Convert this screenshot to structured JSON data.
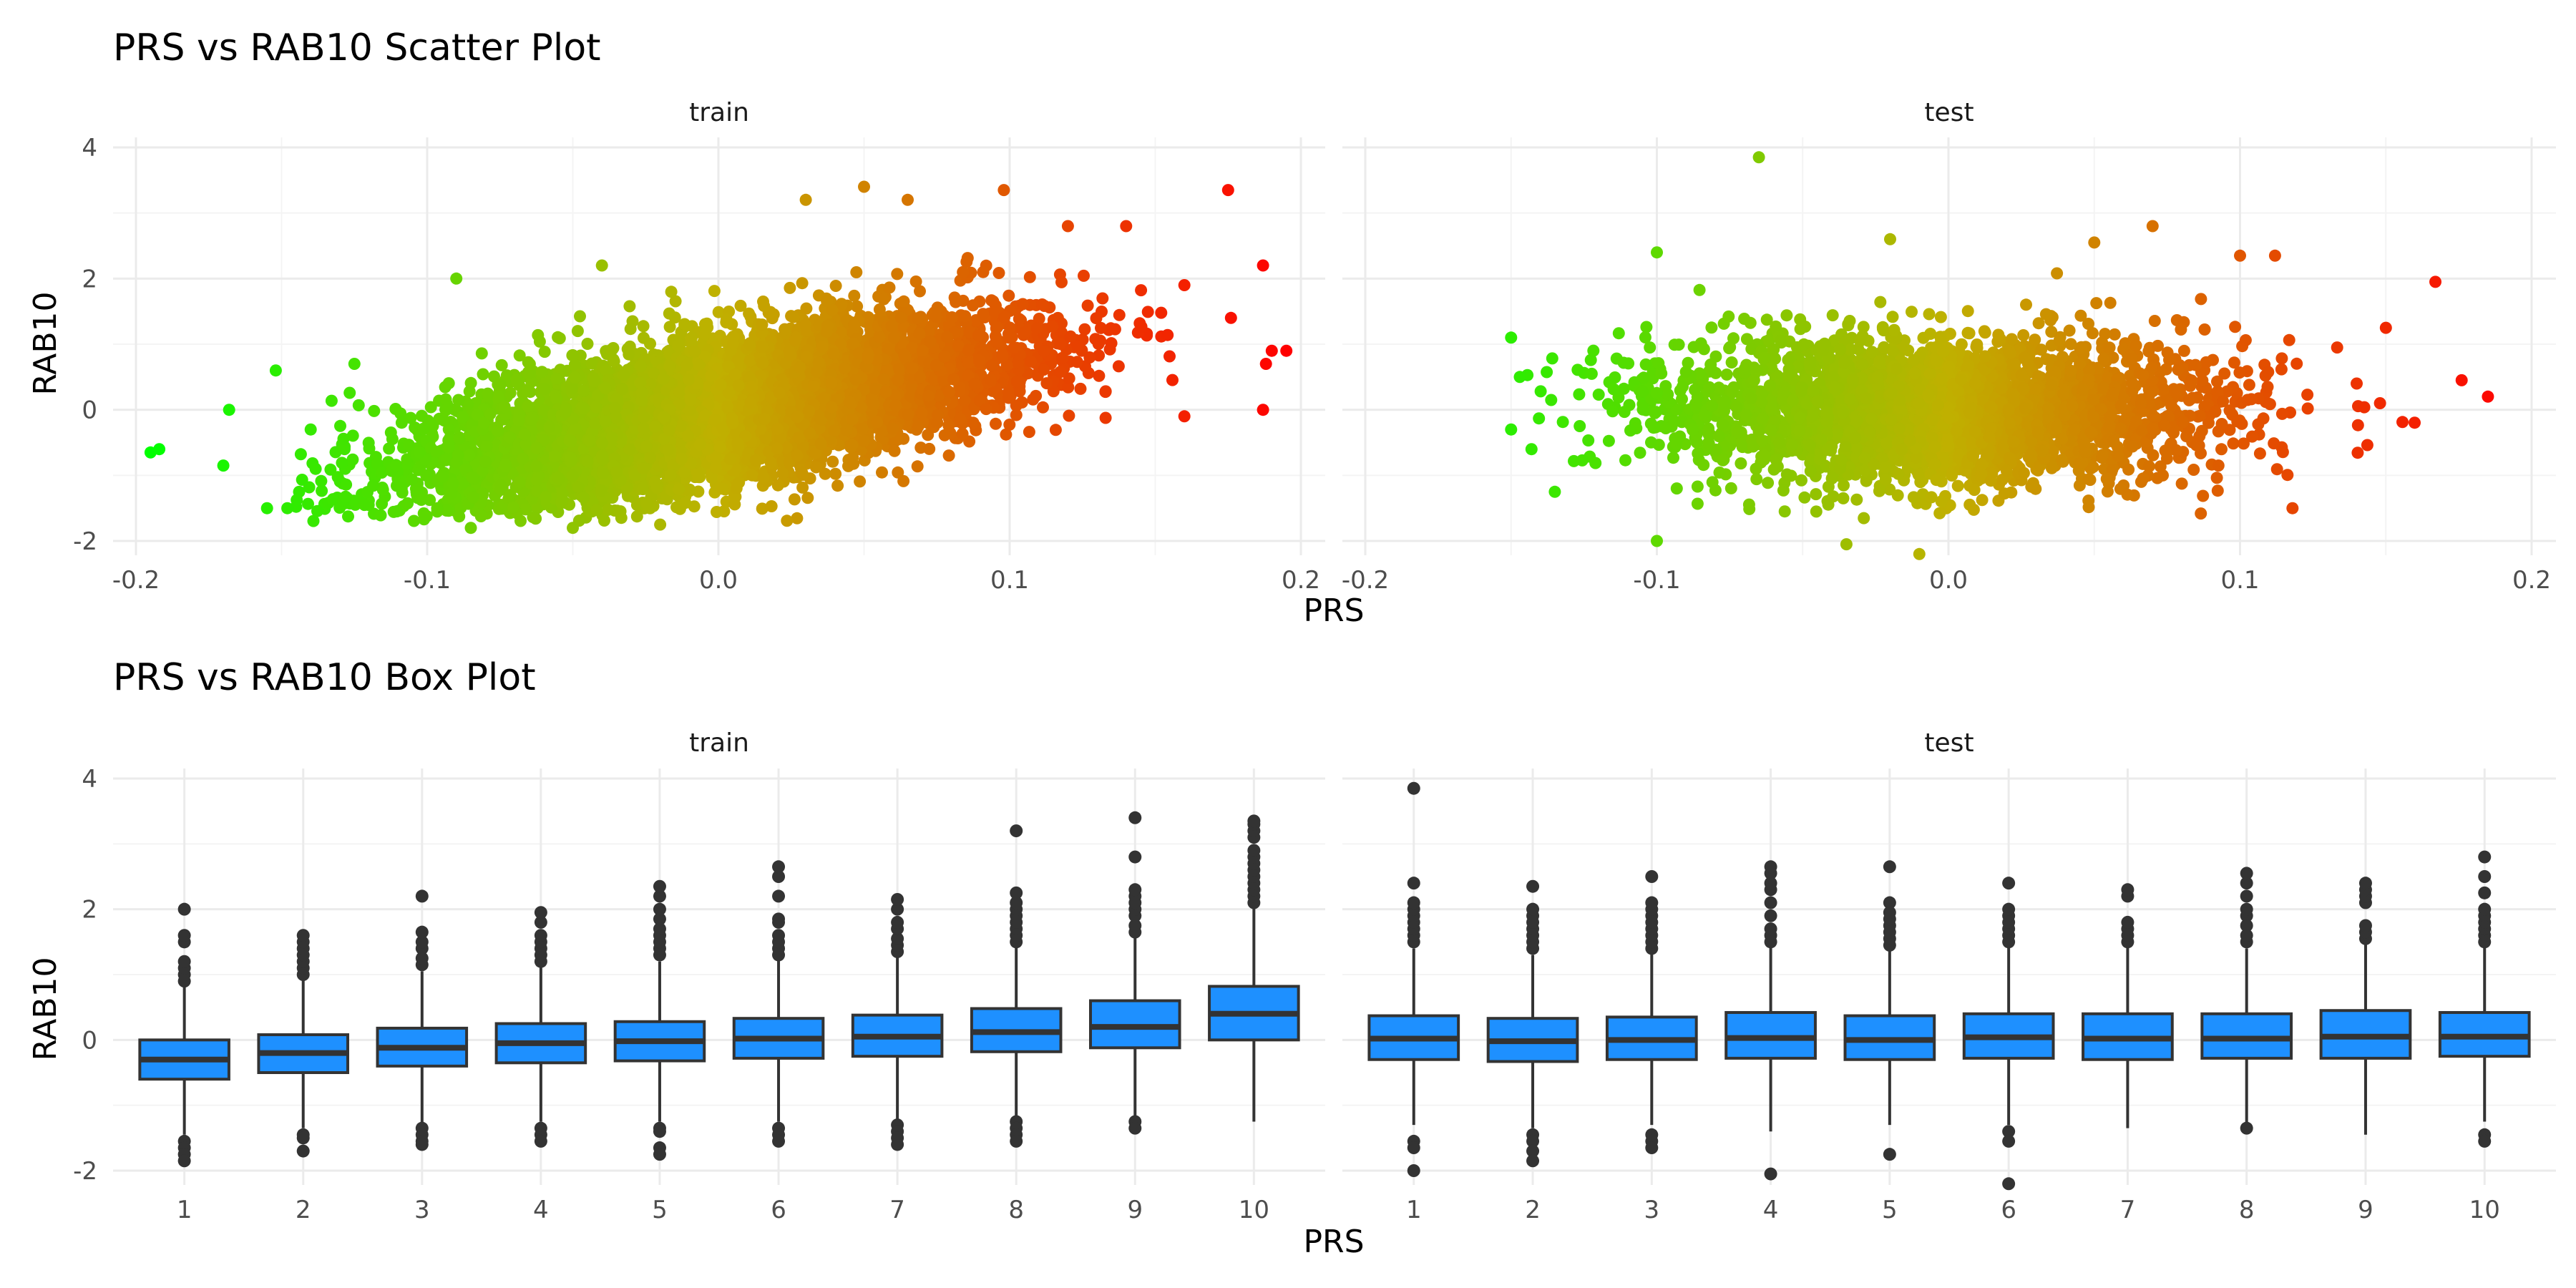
{
  "chart_data": [
    {
      "type": "scatter",
      "title": "PRS vs RAB10 Scatter Plot",
      "xlabel": "PRS",
      "ylabel": "RAB10",
      "xlim": [
        -0.2,
        0.2
      ],
      "ylim": [
        -2,
        4
      ],
      "x_ticks": [
        -0.2,
        -0.1,
        0.0,
        0.1,
        0.2
      ],
      "x_tick_labels": [
        "-0.2",
        "-0.1",
        "0.0",
        "0.1",
        "0.2"
      ],
      "y_ticks": [
        -2,
        0,
        2,
        4
      ],
      "y_tick_labels": [
        "-2",
        "0",
        "2",
        "4"
      ],
      "grid": true,
      "color_scale": {
        "low": "#00ff00",
        "mid": "#c0b000",
        "high": "#ff0000",
        "maps": "PRS"
      },
      "panels": [
        {
          "name": "train",
          "cloud": {
            "n": 7000,
            "x_mean": 0.0,
            "x_sd": 0.05,
            "slope": 8.5,
            "resid_sd": 0.52
          },
          "points": [
            {
              "x": -0.195,
              "y": -0.65
            },
            {
              "x": -0.192,
              "y": -0.6
            },
            {
              "x": -0.17,
              "y": -0.85
            },
            {
              "x": -0.168,
              "y": 0.0
            },
            {
              "x": -0.155,
              "y": -1.5
            },
            {
              "x": -0.152,
              "y": 0.6
            },
            {
              "x": -0.148,
              "y": -1.5
            },
            {
              "x": -0.14,
              "y": -0.3
            },
            {
              "x": -0.125,
              "y": 0.7
            },
            {
              "x": -0.09,
              "y": 2.0
            },
            {
              "x": -0.04,
              "y": 2.2
            },
            {
              "x": 0.03,
              "y": 3.2
            },
            {
              "x": 0.05,
              "y": 3.4
            },
            {
              "x": 0.065,
              "y": 3.2
            },
            {
              "x": 0.098,
              "y": 3.35
            },
            {
              "x": 0.12,
              "y": 2.8
            },
            {
              "x": 0.14,
              "y": 2.8
            },
            {
              "x": 0.175,
              "y": 3.35
            },
            {
              "x": 0.187,
              "y": 2.2
            },
            {
              "x": 0.19,
              "y": 0.9
            },
            {
              "x": 0.195,
              "y": 0.9
            },
            {
              "x": 0.188,
              "y": 0.7
            },
            {
              "x": 0.187,
              "y": 0.0
            },
            {
              "x": 0.176,
              "y": 1.4
            },
            {
              "x": 0.16,
              "y": -0.1
            },
            {
              "x": 0.16,
              "y": 1.9
            },
            {
              "x": -0.085,
              "y": -1.8
            },
            {
              "x": -0.05,
              "y": -1.8
            },
            {
              "x": -0.02,
              "y": -1.75
            }
          ]
        },
        {
          "name": "test",
          "cloud": {
            "n": 3000,
            "x_mean": -0.005,
            "x_sd": 0.048,
            "slope": 0.0,
            "resid_sd": 0.55
          },
          "points": [
            {
              "x": -0.065,
              "y": 3.85
            },
            {
              "x": -0.15,
              "y": 1.1
            },
            {
              "x": -0.147,
              "y": 0.5
            },
            {
              "x": -0.15,
              "y": -0.3
            },
            {
              "x": -0.143,
              "y": -0.6
            },
            {
              "x": -0.135,
              "y": -1.25
            },
            {
              "x": -0.1,
              "y": -2.0
            },
            {
              "x": -0.035,
              "y": -2.05
            },
            {
              "x": -0.01,
              "y": -2.2
            },
            {
              "x": -0.1,
              "y": 2.4
            },
            {
              "x": -0.02,
              "y": 2.6
            },
            {
              "x": 0.05,
              "y": 2.55
            },
            {
              "x": 0.07,
              "y": 2.8
            },
            {
              "x": 0.1,
              "y": 2.35
            },
            {
              "x": 0.112,
              "y": 2.35
            },
            {
              "x": 0.118,
              "y": -1.5
            },
            {
              "x": 0.14,
              "y": 0.4
            },
            {
              "x": 0.148,
              "y": 0.1
            },
            {
              "x": 0.15,
              "y": 1.25
            },
            {
              "x": 0.167,
              "y": 1.95
            },
            {
              "x": 0.176,
              "y": 0.45
            },
            {
              "x": 0.185,
              "y": 0.2
            }
          ]
        }
      ]
    },
    {
      "type": "box",
      "title": "PRS vs RAB10 Box Plot",
      "xlabel": "PRS",
      "ylabel": "RAB10",
      "categories": [
        "1",
        "2",
        "3",
        "4",
        "5",
        "6",
        "7",
        "8",
        "9",
        "10"
      ],
      "ylim": [
        -2,
        4
      ],
      "y_ticks": [
        -2,
        0,
        2,
        4
      ],
      "y_tick_labels": [
        "-2",
        "0",
        "2",
        "4"
      ],
      "grid": true,
      "box_fill": "#1e90ff",
      "box_stroke": "#333333",
      "panels": [
        {
          "name": "train",
          "boxes": [
            {
              "q1": -0.6,
              "median": -0.3,
              "q3": 0.0,
              "whisker_low": -1.45,
              "whisker_high": 0.85,
              "outliers": [
                -1.55,
                -1.65,
                -1.75,
                -1.85,
                0.9,
                1.0,
                1.1,
                1.2,
                1.5,
                1.6,
                2.0
              ]
            },
            {
              "q1": -0.5,
              "median": -0.2,
              "q3": 0.08,
              "whisker_low": -1.35,
              "whisker_high": 0.95,
              "outliers": [
                -1.45,
                -1.5,
                -1.7,
                1.0,
                1.1,
                1.2,
                1.3,
                1.4,
                1.5,
                1.6
              ]
            },
            {
              "q1": -0.4,
              "median": -0.12,
              "q3": 0.18,
              "whisker_low": -1.3,
              "whisker_high": 1.05,
              "outliers": [
                -1.35,
                -1.45,
                -1.55,
                -1.6,
                1.15,
                1.25,
                1.4,
                1.5,
                1.65,
                2.2
              ]
            },
            {
              "q1": -0.35,
              "median": -0.05,
              "q3": 0.25,
              "whisker_low": -1.25,
              "whisker_high": 1.15,
              "outliers": [
                -1.35,
                -1.45,
                -1.55,
                1.2,
                1.3,
                1.4,
                1.5,
                1.6,
                1.8,
                1.95
              ]
            },
            {
              "q1": -0.32,
              "median": -0.02,
              "q3": 0.28,
              "whisker_low": -1.25,
              "whisker_high": 1.2,
              "outliers": [
                -1.35,
                -1.4,
                -1.65,
                -1.75,
                1.3,
                1.4,
                1.5,
                1.6,
                1.7,
                1.85,
                2.0,
                2.2,
                2.35
              ]
            },
            {
              "q1": -0.28,
              "median": 0.02,
              "q3": 0.33,
              "whisker_low": -1.25,
              "whisker_high": 1.25,
              "outliers": [
                -1.35,
                -1.45,
                -1.55,
                1.3,
                1.4,
                1.5,
                1.6,
                1.8,
                1.85,
                2.2,
                2.5,
                2.65
              ]
            },
            {
              "q1": -0.25,
              "median": 0.05,
              "q3": 0.38,
              "whisker_low": -1.22,
              "whisker_high": 1.3,
              "outliers": [
                -1.3,
                -1.4,
                -1.5,
                -1.6,
                1.35,
                1.45,
                1.55,
                1.7,
                1.8,
                2.0,
                2.15
              ]
            },
            {
              "q1": -0.18,
              "median": 0.12,
              "q3": 0.48,
              "whisker_low": -1.2,
              "whisker_high": 1.45,
              "outliers": [
                -1.25,
                -1.35,
                -1.45,
                -1.55,
                1.5,
                1.6,
                1.7,
                1.8,
                1.9,
                2.0,
                2.1,
                2.25,
                3.2
              ]
            },
            {
              "q1": -0.12,
              "median": 0.2,
              "q3": 0.6,
              "whisker_low": -1.2,
              "whisker_high": 1.6,
              "outliers": [
                -1.25,
                -1.35,
                1.65,
                1.75,
                1.9,
                2.0,
                2.1,
                2.2,
                2.3,
                2.8,
                3.4
              ]
            },
            {
              "q1": 0.0,
              "median": 0.4,
              "q3": 0.82,
              "whisker_low": -1.25,
              "whisker_high": 2.05,
              "outliers": [
                2.1,
                2.2,
                2.3,
                2.4,
                2.5,
                2.6,
                2.7,
                2.8,
                2.9,
                3.1,
                3.2,
                3.3,
                3.35
              ]
            }
          ]
        },
        {
          "name": "test",
          "boxes": [
            {
              "q1": -0.3,
              "median": 0.02,
              "q3": 0.37,
              "whisker_low": -1.3,
              "whisker_high": 1.4,
              "outliers": [
                -1.55,
                -1.65,
                -2.0,
                1.5,
                1.6,
                1.7,
                1.8,
                1.9,
                2.0,
                2.1,
                2.4,
                3.85
              ]
            },
            {
              "q1": -0.33,
              "median": -0.02,
              "q3": 0.33,
              "whisker_low": -1.35,
              "whisker_high": 1.3,
              "outliers": [
                -1.45,
                -1.55,
                -1.7,
                -1.85,
                1.4,
                1.5,
                1.6,
                1.7,
                1.8,
                1.9,
                2.0,
                2.35
              ]
            },
            {
              "q1": -0.3,
              "median": 0.0,
              "q3": 0.35,
              "whisker_low": -1.3,
              "whisker_high": 1.35,
              "outliers": [
                -1.45,
                -1.55,
                -1.65,
                1.4,
                1.5,
                1.6,
                1.7,
                1.8,
                1.9,
                2.0,
                2.1,
                2.5
              ]
            },
            {
              "q1": -0.28,
              "median": 0.03,
              "q3": 0.42,
              "whisker_low": -1.4,
              "whisker_high": 1.45,
              "outliers": [
                -2.05,
                1.5,
                1.6,
                1.7,
                1.9,
                2.1,
                2.3,
                2.4,
                2.55,
                2.65
              ]
            },
            {
              "q1": -0.3,
              "median": 0.0,
              "q3": 0.37,
              "whisker_low": -1.3,
              "whisker_high": 1.4,
              "outliers": [
                -1.75,
                1.45,
                1.55,
                1.65,
                1.75,
                1.85,
                1.95,
                2.1,
                2.65
              ]
            },
            {
              "q1": -0.28,
              "median": 0.04,
              "q3": 0.4,
              "whisker_low": -1.3,
              "whisker_high": 1.45,
              "outliers": [
                -1.4,
                -1.55,
                -2.2,
                1.5,
                1.6,
                1.7,
                1.8,
                1.9,
                2.0,
                2.4
              ]
            },
            {
              "q1": -0.3,
              "median": 0.02,
              "q3": 0.4,
              "whisker_low": -1.35,
              "whisker_high": 1.45,
              "outliers": [
                1.5,
                1.6,
                1.7,
                1.8,
                2.2,
                2.3
              ]
            },
            {
              "q1": -0.28,
              "median": 0.02,
              "q3": 0.4,
              "whisker_low": -1.3,
              "whisker_high": 1.4,
              "outliers": [
                -1.35,
                1.5,
                1.6,
                1.75,
                1.9,
                2.0,
                2.2,
                2.4,
                2.55
              ]
            },
            {
              "q1": -0.28,
              "median": 0.05,
              "q3": 0.45,
              "whisker_low": -1.45,
              "whisker_high": 1.5,
              "outliers": [
                1.55,
                1.65,
                1.75,
                2.1,
                2.2,
                2.3,
                2.4
              ]
            },
            {
              "q1": -0.25,
              "median": 0.05,
              "q3": 0.42,
              "whisker_low": -1.25,
              "whisker_high": 1.45,
              "outliers": [
                -1.45,
                -1.55,
                1.5,
                1.6,
                1.7,
                1.8,
                1.9,
                2.0,
                2.25,
                2.5,
                2.8
              ]
            }
          ]
        }
      ]
    }
  ]
}
